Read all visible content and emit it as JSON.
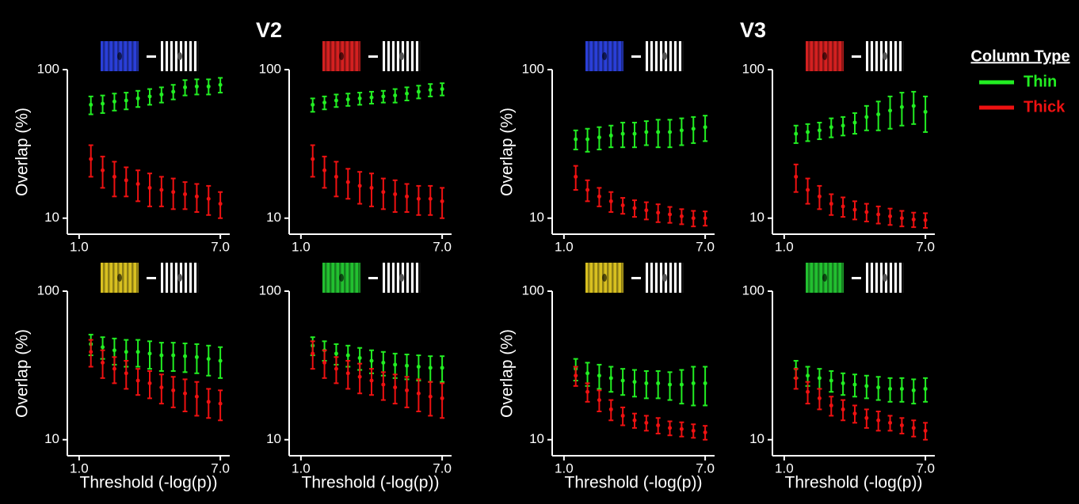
{
  "legend_title": "Column Type",
  "chart_data": [
    {
      "type": "scatter",
      "title": "V2",
      "ylabel": "Overlap (%)",
      "x": [
        1.5,
        2,
        2.5,
        3,
        3.5,
        4,
        4.5,
        5,
        5.5,
        6,
        6.5,
        7
      ],
      "xlim": [
        0.5,
        7.4
      ],
      "ylim": [
        7.8,
        100
      ],
      "log_y": true,
      "xticks": [
        {
          "value": 1,
          "label": "1.0"
        },
        {
          "value": 7,
          "label": "7.0"
        }
      ],
      "yticks": [
        10,
        100
      ],
      "series": [
        {
          "name": "Thin",
          "color": "#22ee22",
          "values": [
            58,
            59,
            61,
            62,
            64,
            66,
            68,
            71,
            76,
            77,
            77,
            79
          ],
          "errors": [
            8,
            8,
            8,
            8,
            8,
            8,
            8,
            8,
            9,
            9,
            9,
            9
          ]
        },
        {
          "name": "Thick",
          "color": "#ee1111",
          "values": [
            25,
            21,
            19,
            18,
            17,
            16,
            15.5,
            15,
            14.5,
            14,
            13.5,
            12.5
          ],
          "errors": [
            6,
            5,
            5,
            4,
            4,
            4,
            3.5,
            3.5,
            3,
            3,
            3,
            2.5
          ]
        }
      ]
    },
    {
      "type": "scatter",
      "x": [
        1.5,
        2,
        2.5,
        3,
        3.5,
        4,
        4.5,
        5,
        5.5,
        6,
        6.5,
        7
      ],
      "xlim": [
        0.5,
        7.4
      ],
      "ylim": [
        7.8,
        100
      ],
      "log_y": true,
      "xticks": [
        {
          "value": 1,
          "label": "1.0"
        },
        {
          "value": 7,
          "label": "7.0"
        }
      ],
      "yticks": [
        10,
        100
      ],
      "series": [
        {
          "name": "Thin",
          "color": "#22ee22",
          "values": [
            58,
            60,
            62,
            63,
            64,
            65,
            66,
            67,
            69,
            71,
            73,
            74
          ],
          "errors": [
            6,
            6,
            6,
            6,
            6,
            6,
            6,
            7,
            7,
            7,
            7,
            7
          ]
        },
        {
          "name": "Thick",
          "color": "#ee1111",
          "values": [
            25,
            21,
            19,
            17.5,
            16.5,
            16,
            15,
            14.5,
            14,
            13.5,
            13.5,
            13
          ],
          "errors": [
            6,
            5,
            5,
            4,
            4,
            4,
            3.5,
            3.5,
            3,
            3,
            3,
            3
          ]
        }
      ]
    },
    {
      "type": "scatter",
      "title": "V3",
      "ylabel": "Overlap (%)",
      "x": [
        1.5,
        2,
        2.5,
        3,
        3.5,
        4,
        4.5,
        5,
        5.5,
        6,
        6.5,
        7
      ],
      "xlim": [
        0.5,
        7.4
      ],
      "ylim": [
        7.8,
        100
      ],
      "log_y": true,
      "xticks": [
        {
          "value": 1,
          "label": "1.0"
        },
        {
          "value": 7,
          "label": "7.0"
        }
      ],
      "yticks": [
        10,
        100
      ],
      "series": [
        {
          "name": "Thin",
          "color": "#22ee22",
          "values": [
            34,
            34,
            35,
            36,
            37,
            37,
            38,
            38,
            38,
            39,
            40,
            41
          ],
          "errors": [
            5,
            6,
            6,
            6,
            7,
            7,
            7,
            8,
            8,
            8,
            8,
            8
          ]
        },
        {
          "name": "Thick",
          "color": "#ee1111",
          "values": [
            19,
            15.5,
            14,
            13,
            12.2,
            11.7,
            11.3,
            10.9,
            10.6,
            10.3,
            10,
            10
          ],
          "errors": [
            3.5,
            2.5,
            2,
            2,
            1.5,
            1.5,
            1.5,
            1.5,
            1.3,
            1.2,
            1.2,
            1.1
          ]
        }
      ]
    },
    {
      "type": "scatter",
      "x": [
        1.5,
        2,
        2.5,
        3,
        3.5,
        4,
        4.5,
        5,
        5.5,
        6,
        6.5,
        7
      ],
      "xlim": [
        0.5,
        7.4
      ],
      "ylim": [
        7.8,
        100
      ],
      "log_y": true,
      "xticks": [
        {
          "value": 1,
          "label": "1.0"
        },
        {
          "value": 7,
          "label": "7.0"
        }
      ],
      "yticks": [
        10,
        100
      ],
      "series": [
        {
          "name": "Thin",
          "color": "#22ee22",
          "values": [
            37,
            38,
            39,
            41,
            42,
            44,
            48,
            50,
            53,
            56,
            57,
            52
          ],
          "errors": [
            5,
            5,
            5,
            6,
            6,
            7,
            9,
            11,
            13,
            14,
            14,
            14
          ]
        },
        {
          "name": "Thick",
          "color": "#ee1111",
          "values": [
            19,
            15.5,
            14,
            12.5,
            12,
            11.4,
            11,
            10.6,
            10.3,
            10,
            9.8,
            9.7
          ],
          "errors": [
            4,
            3,
            2.5,
            2,
            1.8,
            1.6,
            1.5,
            1.4,
            1.3,
            1.2,
            1.1,
            1.1
          ]
        }
      ]
    },
    {
      "type": "scatter",
      "ylabel": "Overlap (%)",
      "xlabel": "Threshold (-log(p))",
      "x": [
        1.5,
        2,
        2.5,
        3,
        3.5,
        4,
        4.5,
        5,
        5.5,
        6,
        6.5,
        7
      ],
      "xlim": [
        0.5,
        7.4
      ],
      "ylim": [
        7.8,
        100
      ],
      "log_y": true,
      "xticks": [
        {
          "value": 1,
          "label": "1.0"
        },
        {
          "value": 7,
          "label": "7.0"
        }
      ],
      "yticks": [
        10,
        100
      ],
      "series": [
        {
          "name": "Thin",
          "color": "#22ee22",
          "values": [
            44,
            42,
            40,
            39,
            39,
            38,
            37,
            37,
            36.5,
            36,
            35,
            34
          ],
          "errors": [
            7,
            7,
            8,
            8,
            8,
            8,
            8,
            8,
            8,
            8,
            8,
            8
          ]
        },
        {
          "name": "Thick",
          "color": "#ee1111",
          "values": [
            39,
            33,
            30,
            28,
            25,
            24,
            22.5,
            21.5,
            20.5,
            19.5,
            18,
            17.5
          ],
          "errors": [
            8,
            7,
            6,
            6,
            5,
            5,
            5,
            5,
            5,
            5,
            4,
            4
          ]
        }
      ]
    },
    {
      "type": "scatter",
      "xlabel": "Threshold (-log(p))",
      "x": [
        1.5,
        2,
        2.5,
        3,
        3.5,
        4,
        4.5,
        5,
        5.5,
        6,
        6.5,
        7
      ],
      "xlim": [
        0.5,
        7.4
      ],
      "ylim": [
        7.8,
        100
      ],
      "log_y": true,
      "xticks": [
        {
          "value": 1,
          "label": "1.0"
        },
        {
          "value": 7,
          "label": "7.0"
        }
      ],
      "yticks": [
        10,
        100
      ],
      "series": [
        {
          "name": "Thin",
          "color": "#22ee22",
          "values": [
            43,
            40,
            38,
            37,
            35.5,
            34,
            33,
            32,
            31.5,
            31,
            30.5,
            30.5
          ],
          "errors": [
            6,
            6,
            6,
            6,
            6,
            6,
            6,
            6,
            6,
            6,
            6,
            6
          ]
        },
        {
          "name": "Thick",
          "color": "#ee1111",
          "values": [
            38,
            33,
            30,
            28,
            26.5,
            25,
            23.5,
            22.5,
            21.5,
            20.5,
            19.5,
            19
          ],
          "errors": [
            8,
            7,
            6,
            6,
            6,
            5,
            5,
            5,
            5,
            5,
            5,
            5
          ]
        }
      ]
    },
    {
      "type": "scatter",
      "ylabel": "Overlap (%)",
      "xlabel": "Threshold (-log(p))",
      "x": [
        1.5,
        2,
        2.5,
        3,
        3.5,
        4,
        4.5,
        5,
        5.5,
        6,
        6.5,
        7
      ],
      "xlim": [
        0.5,
        7.4
      ],
      "ylim": [
        7.8,
        100
      ],
      "log_y": true,
      "xticks": [
        {
          "value": 1,
          "label": "1.0"
        },
        {
          "value": 7,
          "label": "7.0"
        }
      ],
      "yticks": [
        10,
        100
      ],
      "series": [
        {
          "name": "Thin",
          "color": "#22ee22",
          "values": [
            30,
            28,
            27,
            26,
            25,
            24.5,
            24,
            24,
            23.5,
            23.5,
            24,
            24
          ],
          "errors": [
            5,
            5,
            5,
            5,
            5,
            5,
            5,
            5,
            5,
            6,
            7,
            7
          ]
        },
        {
          "name": "Thick",
          "color": "#ee1111",
          "values": [
            27,
            21,
            18.5,
            16,
            14.5,
            13.5,
            13,
            12.5,
            12,
            11.8,
            11.5,
            11.2
          ],
          "errors": [
            4,
            3,
            3,
            2.5,
            2,
            1.5,
            1.5,
            1.5,
            1.3,
            1.3,
            1.2,
            1.2
          ]
        }
      ]
    },
    {
      "type": "scatter",
      "xlabel": "Threshold (-log(p))",
      "x": [
        1.5,
        2,
        2.5,
        3,
        3.5,
        4,
        4.5,
        5,
        5.5,
        6,
        6.5,
        7
      ],
      "xlim": [
        0.5,
        7.4
      ],
      "ylim": [
        7.8,
        100
      ],
      "log_y": true,
      "xticks": [
        {
          "value": 1,
          "label": "1.0"
        },
        {
          "value": 7,
          "label": "7.0"
        }
      ],
      "yticks": [
        10,
        100
      ],
      "series": [
        {
          "name": "Thin",
          "color": "#22ee22",
          "values": [
            30,
            27,
            26,
            25,
            24,
            23.5,
            23,
            22.5,
            22,
            22,
            21.5,
            22
          ],
          "errors": [
            4,
            4,
            4,
            4,
            4,
            4,
            4,
            4,
            4,
            4,
            4,
            4
          ]
        },
        {
          "name": "Thick",
          "color": "#ee1111",
          "values": [
            26,
            21,
            19,
            17,
            16,
            15,
            14,
            13.5,
            13,
            12.5,
            12,
            11.5
          ],
          "errors": [
            4,
            3.5,
            3,
            2.5,
            2.5,
            2,
            2,
            2,
            1.5,
            1.5,
            1.5,
            1.5
          ]
        }
      ]
    }
  ]
}
